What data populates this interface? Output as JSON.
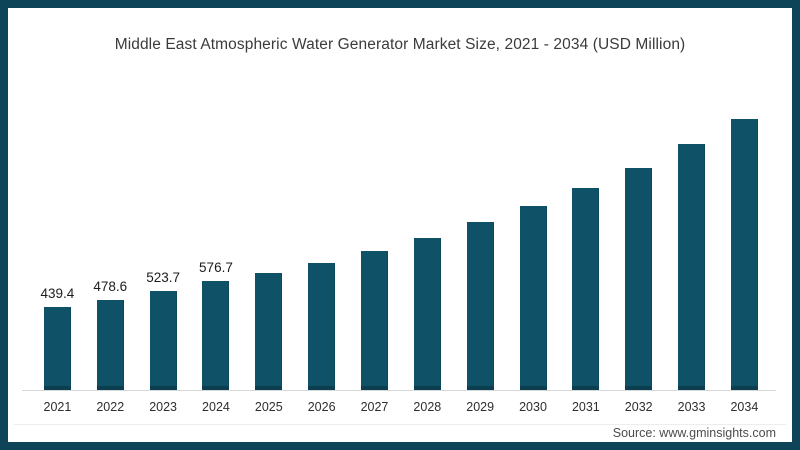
{
  "page": {
    "frame_color": "#0d4457",
    "background": "#ffffff"
  },
  "chart": {
    "title": "Middle East Atmospheric Water Generator Market Size, 2021 - 2034 (USD Million)",
    "source": "Source: www.gminsights.com",
    "bar_color": "#0f5268",
    "axis_line_color": "#d8d8d8"
  },
  "chart_data": {
    "type": "bar",
    "title": "Middle East Atmospheric Water Generator Market Size, 2021 - 2034 (USD Million)",
    "xlabel": "",
    "ylabel": "USD Million",
    "categories": [
      "2021",
      "2022",
      "2023",
      "2024",
      "2025",
      "2026",
      "2027",
      "2028",
      "2029",
      "2030",
      "2031",
      "2032",
      "2033",
      "2034"
    ],
    "values": [
      439.4,
      478.6,
      523.7,
      576.7,
      622,
      675,
      737,
      806,
      892,
      977,
      1069,
      1175,
      1304,
      1436
    ],
    "value_labels": [
      "439.4",
      "478.6",
      "523.7",
      "576.7",
      "",
      "",
      "",
      "",
      "",
      "",
      "",
      "",
      "",
      ""
    ],
    "ylim": [
      0,
      1500
    ],
    "grid": false,
    "legend": null,
    "source": "Source: www.gminsights.com"
  }
}
